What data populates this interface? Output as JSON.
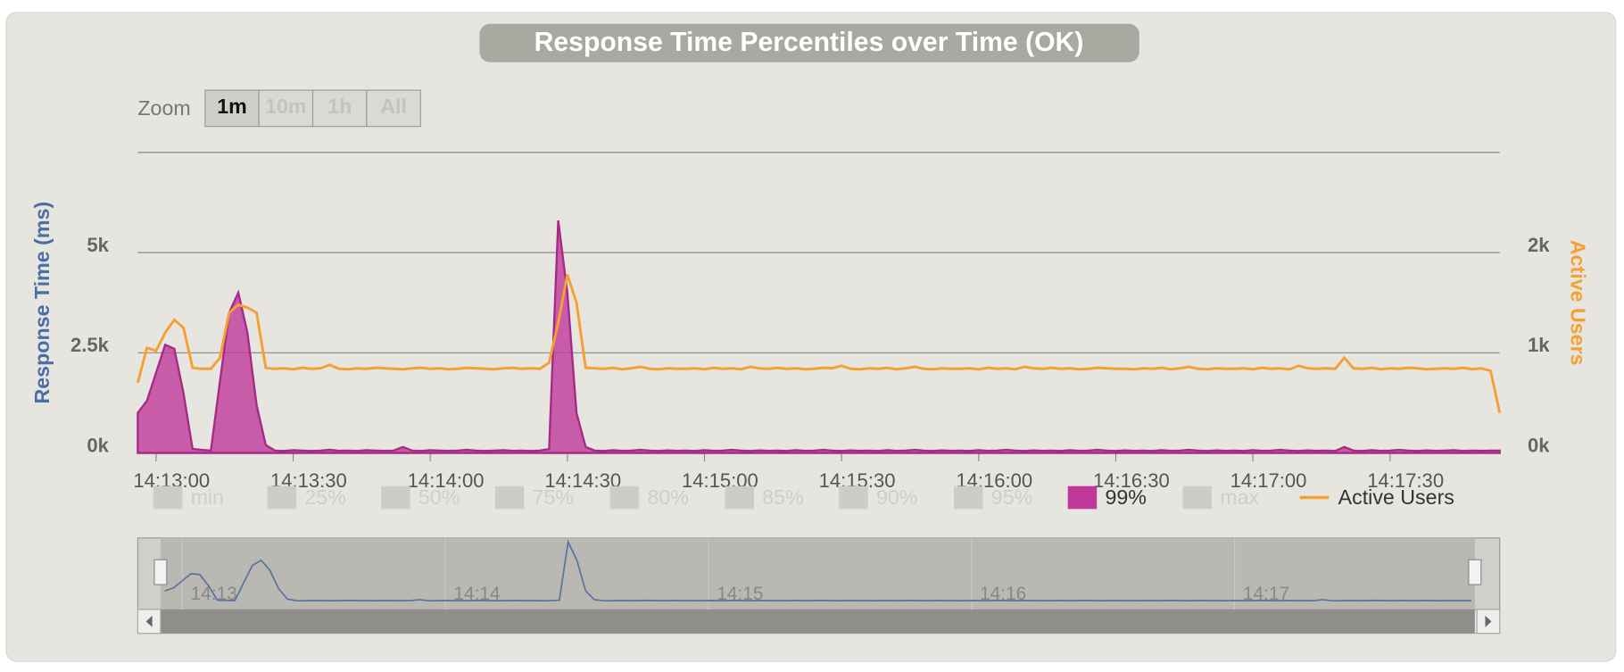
{
  "chart_data": {
    "type": "area-line",
    "title": "Response Time Percentiles over Time (OK)",
    "zoom": {
      "label": "Zoom",
      "buttons": [
        "1m",
        "10m",
        "1h",
        "All"
      ]
    },
    "x_label_left": "Response Time (ms)",
    "y2_label": "Active Users",
    "xlim": [
      "14:12:56",
      "14:17:54"
    ],
    "xticks": [
      "14:13:00",
      "14:13:30",
      "14:14:00",
      "14:14:30",
      "14:15:00",
      "14:15:30",
      "14:16:00",
      "14:16:30",
      "14:17:00",
      "14:17:30"
    ],
    "ylim": [
      0,
      7500
    ],
    "yticks": [
      {
        "value": 0,
        "label": "0k"
      },
      {
        "value": 2500,
        "label": "2.5k"
      },
      {
        "value": 5000,
        "label": "5k"
      }
    ],
    "y2lim": [
      0,
      3000
    ],
    "y2ticks": [
      {
        "value": 0,
        "label": "0k"
      },
      {
        "value": 1000,
        "label": "1k"
      },
      {
        "value": 2000,
        "label": "2k"
      }
    ],
    "hidden_series": [
      "min",
      "25%",
      "50%",
      "75%",
      "80%",
      "85%",
      "90%",
      "95%",
      "max"
    ],
    "navigator_labels": [
      "14:13",
      "14:14",
      "14:15",
      "14:16",
      "14:17"
    ],
    "x": [
      "14:12:56",
      "14:12:58",
      "14:13:00",
      "14:13:02",
      "14:13:04",
      "14:13:06",
      "14:13:08",
      "14:13:10",
      "14:13:12",
      "14:13:14",
      "14:13:16",
      "14:13:18",
      "14:13:20",
      "14:13:22",
      "14:13:24",
      "14:13:26",
      "14:13:28",
      "14:13:30",
      "14:13:32",
      "14:13:34",
      "14:13:36",
      "14:13:38",
      "14:13:40",
      "14:13:42",
      "14:13:44",
      "14:13:46",
      "14:13:48",
      "14:13:50",
      "14:13:52",
      "14:13:54",
      "14:13:56",
      "14:13:58",
      "14:14:00",
      "14:14:02",
      "14:14:04",
      "14:14:06",
      "14:14:08",
      "14:14:10",
      "14:14:12",
      "14:14:14",
      "14:14:16",
      "14:14:18",
      "14:14:20",
      "14:14:22",
      "14:14:24",
      "14:14:26",
      "14:14:28",
      "14:14:30",
      "14:14:32",
      "14:14:34",
      "14:14:36",
      "14:14:38",
      "14:14:40",
      "14:14:42",
      "14:14:44",
      "14:14:46",
      "14:14:48",
      "14:14:50",
      "14:14:52",
      "14:14:54",
      "14:14:56",
      "14:14:58",
      "14:15:00",
      "14:15:02",
      "14:15:04",
      "14:15:06",
      "14:15:08",
      "14:15:10",
      "14:15:12",
      "14:15:14",
      "14:15:16",
      "14:15:18",
      "14:15:20",
      "14:15:22",
      "14:15:24",
      "14:15:26",
      "14:15:28",
      "14:15:30",
      "14:15:32",
      "14:15:34",
      "14:15:36",
      "14:15:38",
      "14:15:40",
      "14:15:42",
      "14:15:44",
      "14:15:46",
      "14:15:48",
      "14:15:50",
      "14:15:52",
      "14:15:54",
      "14:15:56",
      "14:15:58",
      "14:16:00",
      "14:16:02",
      "14:16:04",
      "14:16:06",
      "14:16:08",
      "14:16:10",
      "14:16:12",
      "14:16:14",
      "14:16:16",
      "14:16:18",
      "14:16:20",
      "14:16:22",
      "14:16:24",
      "14:16:26",
      "14:16:28",
      "14:16:30",
      "14:16:32",
      "14:16:34",
      "14:16:36",
      "14:16:38",
      "14:16:40",
      "14:16:42",
      "14:16:44",
      "14:16:46",
      "14:16:48",
      "14:16:50",
      "14:16:52",
      "14:16:54",
      "14:16:56",
      "14:16:58",
      "14:17:00",
      "14:17:02",
      "14:17:04",
      "14:17:06",
      "14:17:08",
      "14:17:10",
      "14:17:12",
      "14:17:14",
      "14:17:16",
      "14:17:18",
      "14:17:20",
      "14:17:22",
      "14:17:24",
      "14:17:26",
      "14:17:28",
      "14:17:30",
      "14:17:32",
      "14:17:34",
      "14:17:36",
      "14:17:38",
      "14:17:40",
      "14:17:42",
      "14:17:44",
      "14:17:46",
      "14:17:48",
      "14:17:50",
      "14:17:52",
      "14:17:54"
    ],
    "series": [
      {
        "name": "99%",
        "color": "#c0399a",
        "values": [
          1000,
          1300,
          2000,
          2700,
          2600,
          1500,
          100,
          80,
          60,
          1800,
          3500,
          4000,
          3000,
          1200,
          200,
          60,
          50,
          70,
          60,
          50,
          60,
          80,
          55,
          60,
          50,
          70,
          60,
          55,
          60,
          150,
          60,
          50,
          70,
          60,
          55,
          60,
          80,
          60,
          50,
          60,
          70,
          55,
          60,
          50,
          60,
          100,
          5800,
          4000,
          1000,
          150,
          60,
          50,
          70,
          55,
          60,
          80,
          60,
          50,
          65,
          55,
          60,
          50,
          70,
          55,
          60,
          80,
          60,
          50,
          65,
          55,
          60,
          50,
          70,
          55,
          60,
          80,
          60,
          50,
          65,
          55,
          60,
          50,
          70,
          55,
          60,
          80,
          60,
          50,
          65,
          55,
          60,
          50,
          70,
          55,
          60,
          80,
          60,
          50,
          65,
          55,
          60,
          50,
          70,
          55,
          60,
          80,
          60,
          50,
          65,
          55,
          60,
          50,
          70,
          55,
          60,
          80,
          60,
          50,
          65,
          55,
          60,
          50,
          70,
          55,
          60,
          80,
          60,
          50,
          65,
          55,
          60,
          50,
          150,
          60,
          50,
          70,
          55,
          60,
          80,
          60,
          50,
          65,
          55,
          60,
          70,
          50,
          60,
          55,
          60,
          60
        ]
      },
      {
        "name": "Active Users",
        "color": "#f5a033",
        "axis": "y2",
        "values": [
          700,
          1050,
          1020,
          1200,
          1330,
          1250,
          850,
          840,
          840,
          950,
          1400,
          1480,
          1450,
          1400,
          850,
          840,
          845,
          835,
          850,
          840,
          845,
          880,
          840,
          835,
          845,
          840,
          850,
          845,
          840,
          835,
          845,
          850,
          840,
          845,
          835,
          840,
          850,
          845,
          840,
          835,
          845,
          850,
          840,
          845,
          840,
          900,
          1300,
          1780,
          1500,
          850,
          845,
          840,
          850,
          835,
          845,
          860,
          840,
          835,
          845,
          840,
          840,
          845,
          835,
          850,
          840,
          845,
          835,
          860,
          845,
          840,
          850,
          840,
          845,
          835,
          840,
          850,
          845,
          870,
          840,
          835,
          845,
          840,
          850,
          835,
          845,
          860,
          840,
          835,
          845,
          840,
          840,
          845,
          835,
          850,
          840,
          845,
          835,
          860,
          845,
          840,
          850,
          840,
          845,
          835,
          840,
          850,
          845,
          840,
          840,
          835,
          845,
          840,
          850,
          835,
          845,
          860,
          840,
          835,
          845,
          840,
          840,
          845,
          835,
          850,
          840,
          845,
          835,
          870,
          845,
          840,
          845,
          840,
          950,
          845,
          840,
          850,
          835,
          845,
          840,
          850,
          845,
          835,
          840,
          845,
          840,
          850,
          835,
          845,
          820,
          400
        ]
      }
    ]
  }
}
